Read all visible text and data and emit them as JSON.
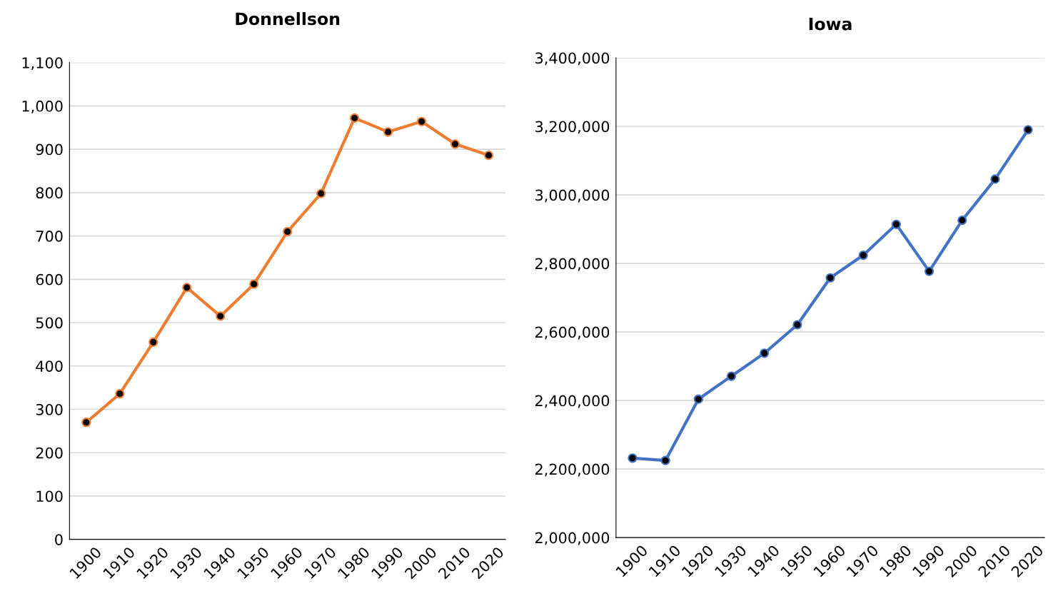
{
  "chart_data": [
    {
      "type": "line",
      "title": "Donnellson",
      "categories": [
        "1900",
        "1910",
        "1920",
        "1930",
        "1940",
        "1950",
        "1960",
        "1970",
        "1980",
        "1990",
        "2000",
        "2010",
        "2020"
      ],
      "series": [
        {
          "color": "#ed7d31",
          "values": [
            270,
            336,
            455,
            581,
            515,
            589,
            710,
            798,
            972,
            940,
            964,
            912,
            886
          ]
        }
      ],
      "ylim": [
        0,
        1100
      ],
      "yticks": [
        0,
        {
          "value": 100,
          "label": "100"
        },
        200,
        300,
        400,
        500,
        600,
        700,
        800,
        900,
        {
          "value": 1000,
          "label": "1,000"
        },
        {
          "value": 1100,
          "label": "1,100"
        }
      ],
      "grid": "y",
      "marker": "circle",
      "line_style": "solid"
    },
    {
      "type": "line",
      "title": "Iowa",
      "categories": [
        "1900",
        "1910",
        "1920",
        "1930",
        "1940",
        "1950",
        "1960",
        "1970",
        "1980",
        "1990",
        "2000",
        "2010",
        "2020"
      ],
      "series": [
        {
          "color": "#4472c4",
          "values": [
            2232000,
            2225000,
            2404000,
            2471000,
            2538000,
            2621000,
            2758000,
            2824000,
            2914000,
            2777000,
            2926000,
            3046000,
            3190000
          ]
        }
      ],
      "ylim": [
        2000000,
        3400000
      ],
      "yticks": [
        {
          "value": 2000000,
          "label": "2,000,000"
        },
        {
          "value": 2200000,
          "label": "2,200,000"
        },
        {
          "value": 2400000,
          "label": "2,400,000"
        },
        {
          "value": 2600000,
          "label": "2,600,000"
        },
        {
          "value": 2800000,
          "label": "2,800,000"
        },
        {
          "value": 3000000,
          "label": "3,000,000"
        },
        {
          "value": 3200000,
          "label": "3,200,000"
        },
        {
          "value": 3400000,
          "label": "3,400,000"
        }
      ],
      "grid": "y",
      "marker": "circle",
      "line_style": "solid"
    }
  ]
}
